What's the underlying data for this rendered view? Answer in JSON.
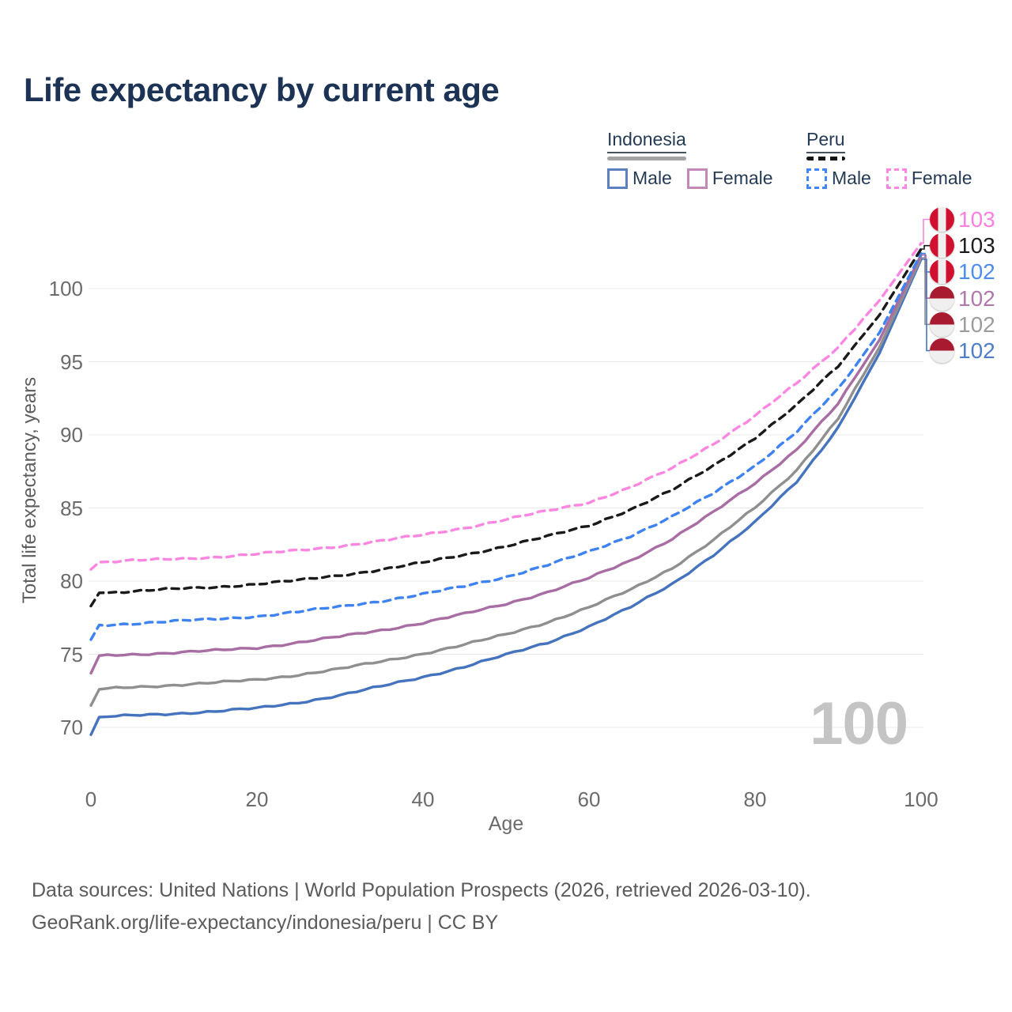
{
  "title": "Life expectancy by current age",
  "watermark": "100",
  "legend": {
    "groups": [
      {
        "label": "Indonesia",
        "line_style": "solid",
        "line_color": "#a3a3a3",
        "items": [
          {
            "label": "Male",
            "color": "#5c80c0",
            "dashed": false
          },
          {
            "label": "Female",
            "color": "#c289b8",
            "dashed": false
          }
        ]
      },
      {
        "label": "Peru",
        "line_style": "dashed",
        "line_color": "#151515",
        "items": [
          {
            "label": "Male",
            "color": "#4285f4",
            "dashed": true
          },
          {
            "label": "Female",
            "color": "#ff87e3",
            "dashed": true
          }
        ]
      }
    ]
  },
  "end_labels": [
    {
      "value": "103",
      "series": "Peru Female",
      "flag": "peru",
      "text_color": "#fb7fe0"
    },
    {
      "value": "103",
      "series": "Peru",
      "flag": "peru",
      "text_color": "#1c1c1c"
    },
    {
      "value": "102",
      "series": "Peru Male",
      "flag": "peru",
      "text_color": "#4d8df0"
    },
    {
      "value": "102",
      "series": "Indonesia Female",
      "flag": "indonesia",
      "text_color": "#b178ab"
    },
    {
      "value": "102",
      "series": "Indonesia",
      "flag": "indonesia",
      "text_color": "#9c9c9c"
    },
    {
      "value": "102",
      "series": "Indonesia Male",
      "flag": "indonesia",
      "text_color": "#4f7ec9"
    }
  ],
  "footer": {
    "line1": "Data sources: United Nations | World Population Prospects (2026, retrieved 2026-03-10).",
    "line2": "GeoRank.org/life-expectancy/indonesia/peru | CC BY"
  },
  "chart_data": {
    "type": "line",
    "title": "Life expectancy by current age",
    "xlabel": "Age",
    "ylabel": "Total life expectancy, years",
    "x_ticks": [
      0,
      20,
      40,
      60,
      80,
      100
    ],
    "y_ticks": [
      70,
      75,
      80,
      85,
      90,
      95,
      100
    ],
    "xlim": [
      0,
      100
    ],
    "ylim": [
      68.5,
      103.5
    ],
    "grid": "horizontal",
    "legend_position": "top-right",
    "x": [
      0,
      1,
      5,
      10,
      15,
      20,
      25,
      30,
      35,
      40,
      45,
      50,
      55,
      60,
      65,
      70,
      75,
      80,
      85,
      90,
      95,
      100
    ],
    "series": [
      {
        "name": "Indonesia Male",
        "country": "Indonesia",
        "sex": "Male",
        "color": "#4573bd",
        "style": "solid",
        "end_label": "102",
        "values": [
          69.5,
          70.7,
          70.8,
          70.95,
          71.1,
          71.3,
          71.7,
          72.2,
          72.8,
          73.45,
          74.15,
          74.95,
          75.8,
          76.9,
          78.2,
          79.8,
          81.8,
          84.0,
          86.8,
          90.5,
          95.6,
          102.0
        ]
      },
      {
        "name": "Indonesia",
        "country": "Indonesia",
        "sex": "Total",
        "color": "#8f8f8f",
        "style": "solid",
        "end_label": "102",
        "values": [
          71.5,
          72.6,
          72.75,
          72.9,
          73.05,
          73.25,
          73.6,
          74.0,
          74.5,
          75.05,
          75.65,
          76.35,
          77.2,
          78.2,
          79.4,
          80.9,
          82.8,
          85.0,
          87.6,
          91.1,
          96.0,
          102.1
        ]
      },
      {
        "name": "Indonesia Female",
        "country": "Indonesia",
        "sex": "Female",
        "color": "#a86da2",
        "style": "solid",
        "end_label": "102",
        "values": [
          73.7,
          74.9,
          75.0,
          75.1,
          75.25,
          75.45,
          75.8,
          76.2,
          76.65,
          77.15,
          77.75,
          78.45,
          79.25,
          80.2,
          81.4,
          82.9,
          84.7,
          86.7,
          89.0,
          92.1,
          96.5,
          102.3
        ]
      },
      {
        "name": "Peru Male",
        "country": "Peru",
        "sex": "Male",
        "color": "#3f83f2",
        "style": "dashed",
        "end_label": "102",
        "values": [
          76.0,
          77.0,
          77.1,
          77.25,
          77.4,
          77.6,
          77.9,
          78.25,
          78.65,
          79.1,
          79.65,
          80.3,
          81.1,
          82.0,
          83.1,
          84.4,
          86.0,
          87.9,
          90.2,
          93.1,
          97.0,
          102.4
        ]
      },
      {
        "name": "Peru",
        "country": "Peru",
        "sex": "Total",
        "color": "#1a1a1a",
        "style": "dashed",
        "end_label": "103",
        "values": [
          78.3,
          79.2,
          79.3,
          79.45,
          79.6,
          79.8,
          80.05,
          80.4,
          80.8,
          81.25,
          81.8,
          82.4,
          83.05,
          83.8,
          84.9,
          86.2,
          87.9,
          89.8,
          92.0,
          94.7,
          98.2,
          102.7
        ]
      },
      {
        "name": "Peru Female",
        "country": "Peru",
        "sex": "Female",
        "color": "#fb87e0",
        "style": "dashed",
        "end_label": "103",
        "values": [
          80.8,
          81.3,
          81.4,
          81.5,
          81.65,
          81.85,
          82.1,
          82.4,
          82.75,
          83.15,
          83.65,
          84.2,
          84.8,
          85.4,
          86.4,
          87.7,
          89.4,
          91.3,
          93.5,
          96.0,
          99.2,
          103.1
        ]
      }
    ]
  }
}
